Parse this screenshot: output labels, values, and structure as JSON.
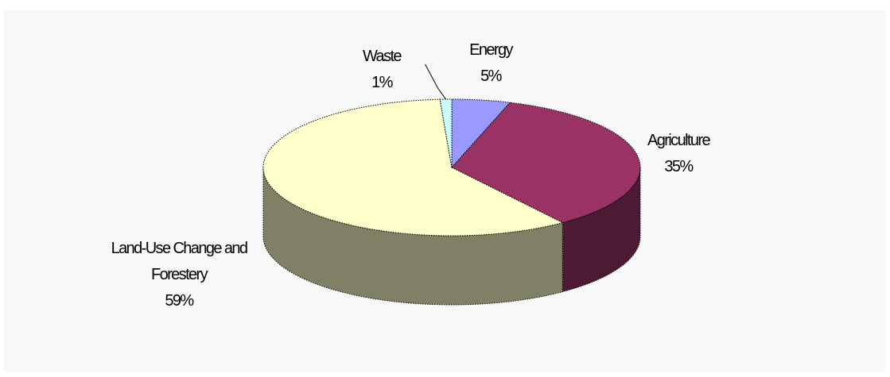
{
  "chart_data": {
    "type": "pie",
    "title": "",
    "categories": [
      "Energy",
      "Agriculture",
      "Land-Use Change and Forestery",
      "Waste"
    ],
    "values": [
      5,
      35,
      59,
      1
    ],
    "labels": [
      {
        "category": "Energy",
        "lines": [
          "Energy"
        ],
        "percent": "5%"
      },
      {
        "category": "Agriculture",
        "lines": [
          "Agriculture"
        ],
        "percent": "35%"
      },
      {
        "category": "Land-Use Change and Forestery",
        "lines": [
          "Land-Use Change and",
          "Forestery"
        ],
        "percent": "59%"
      },
      {
        "category": "Waste",
        "lines": [
          "Waste"
        ],
        "percent": "1%"
      }
    ],
    "colors": [
      "#9999ff",
      "#993366",
      "#ffffcc",
      "#ccffff"
    ],
    "side_colors": [
      "#5c5c99",
      "#4d1a33",
      "#808066",
      "#8aa6a6"
    ],
    "legend": "none",
    "style": "3d"
  }
}
